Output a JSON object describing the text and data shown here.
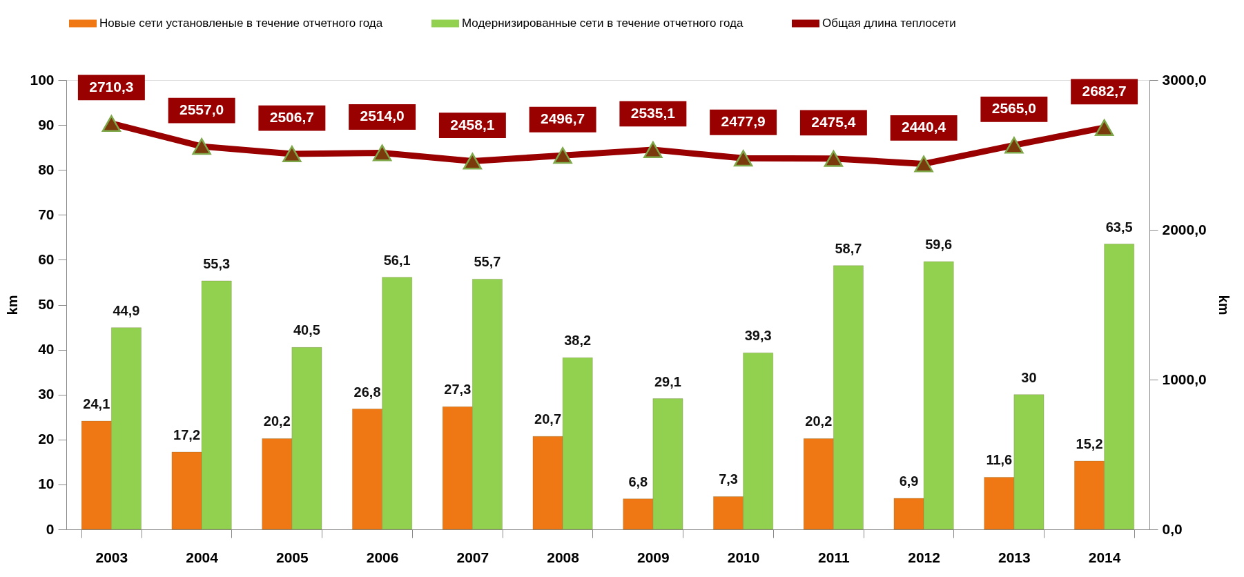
{
  "chart_data": {
    "type": "bar",
    "categories": [
      "2003",
      "2004",
      "2005",
      "2006",
      "2007",
      "2008",
      "2009",
      "2010",
      "2011",
      "2012",
      "2013",
      "2014"
    ],
    "ylabel": "km",
    "y2label": "km",
    "ylim": [
      0,
      100
    ],
    "yticks": [
      0,
      10,
      20,
      30,
      40,
      50,
      60,
      70,
      80,
      90,
      100
    ],
    "y2lim": [
      0,
      3000
    ],
    "y2ticks": [
      {
        "value": 0,
        "label": "0,0"
      },
      {
        "value": 1000,
        "label": "1000,0"
      },
      {
        "value": 2000,
        "label": "2000,0"
      },
      {
        "value": 3000,
        "label": "3000,0"
      }
    ],
    "legend": "top",
    "series": [
      {
        "name": "Новые сети установленые в течение отчетного года",
        "color": "#f07814",
        "values": [
          24.1,
          17.2,
          20.2,
          26.8,
          27.3,
          20.7,
          6.8,
          7.3,
          20.2,
          6.9,
          11.6,
          15.2
        ],
        "value_labels": [
          "24,1",
          "17,2",
          "20,2",
          "26,8",
          "27,3",
          "20,7",
          "6,8",
          "7,3",
          "20,2",
          "6,9",
          "11,6",
          "15,2"
        ]
      },
      {
        "name": "Модернизированные сети в течение отчетного года",
        "color": "#92d050",
        "values": [
          44.9,
          55.3,
          40.5,
          56.1,
          55.7,
          38.2,
          29.1,
          39.3,
          58.7,
          59.6,
          30,
          63.5
        ],
        "value_labels": [
          "44,9",
          "55,3",
          "40,5",
          "56,1",
          "55,7",
          "38,2",
          "29,1",
          "39,3",
          "58,7",
          "59,6",
          "30",
          "63,5"
        ]
      },
      {
        "name": "Общая длина теплосети",
        "type": "line",
        "axis": "y2",
        "color": "#990000",
        "marker": "triangle",
        "values": [
          2710.3,
          2557.0,
          2506.7,
          2514.0,
          2458.1,
          2496.7,
          2535.1,
          2477.9,
          2475.4,
          2440.4,
          2565.0,
          2682.7
        ],
        "value_labels": [
          "2710,3",
          "2557,0",
          "2506,7",
          "2514,0",
          "2458,1",
          "2496,7",
          "2535,1",
          "2477,9",
          "2475,4",
          "2440,4",
          "2565,0",
          "2682,7"
        ]
      }
    ]
  }
}
